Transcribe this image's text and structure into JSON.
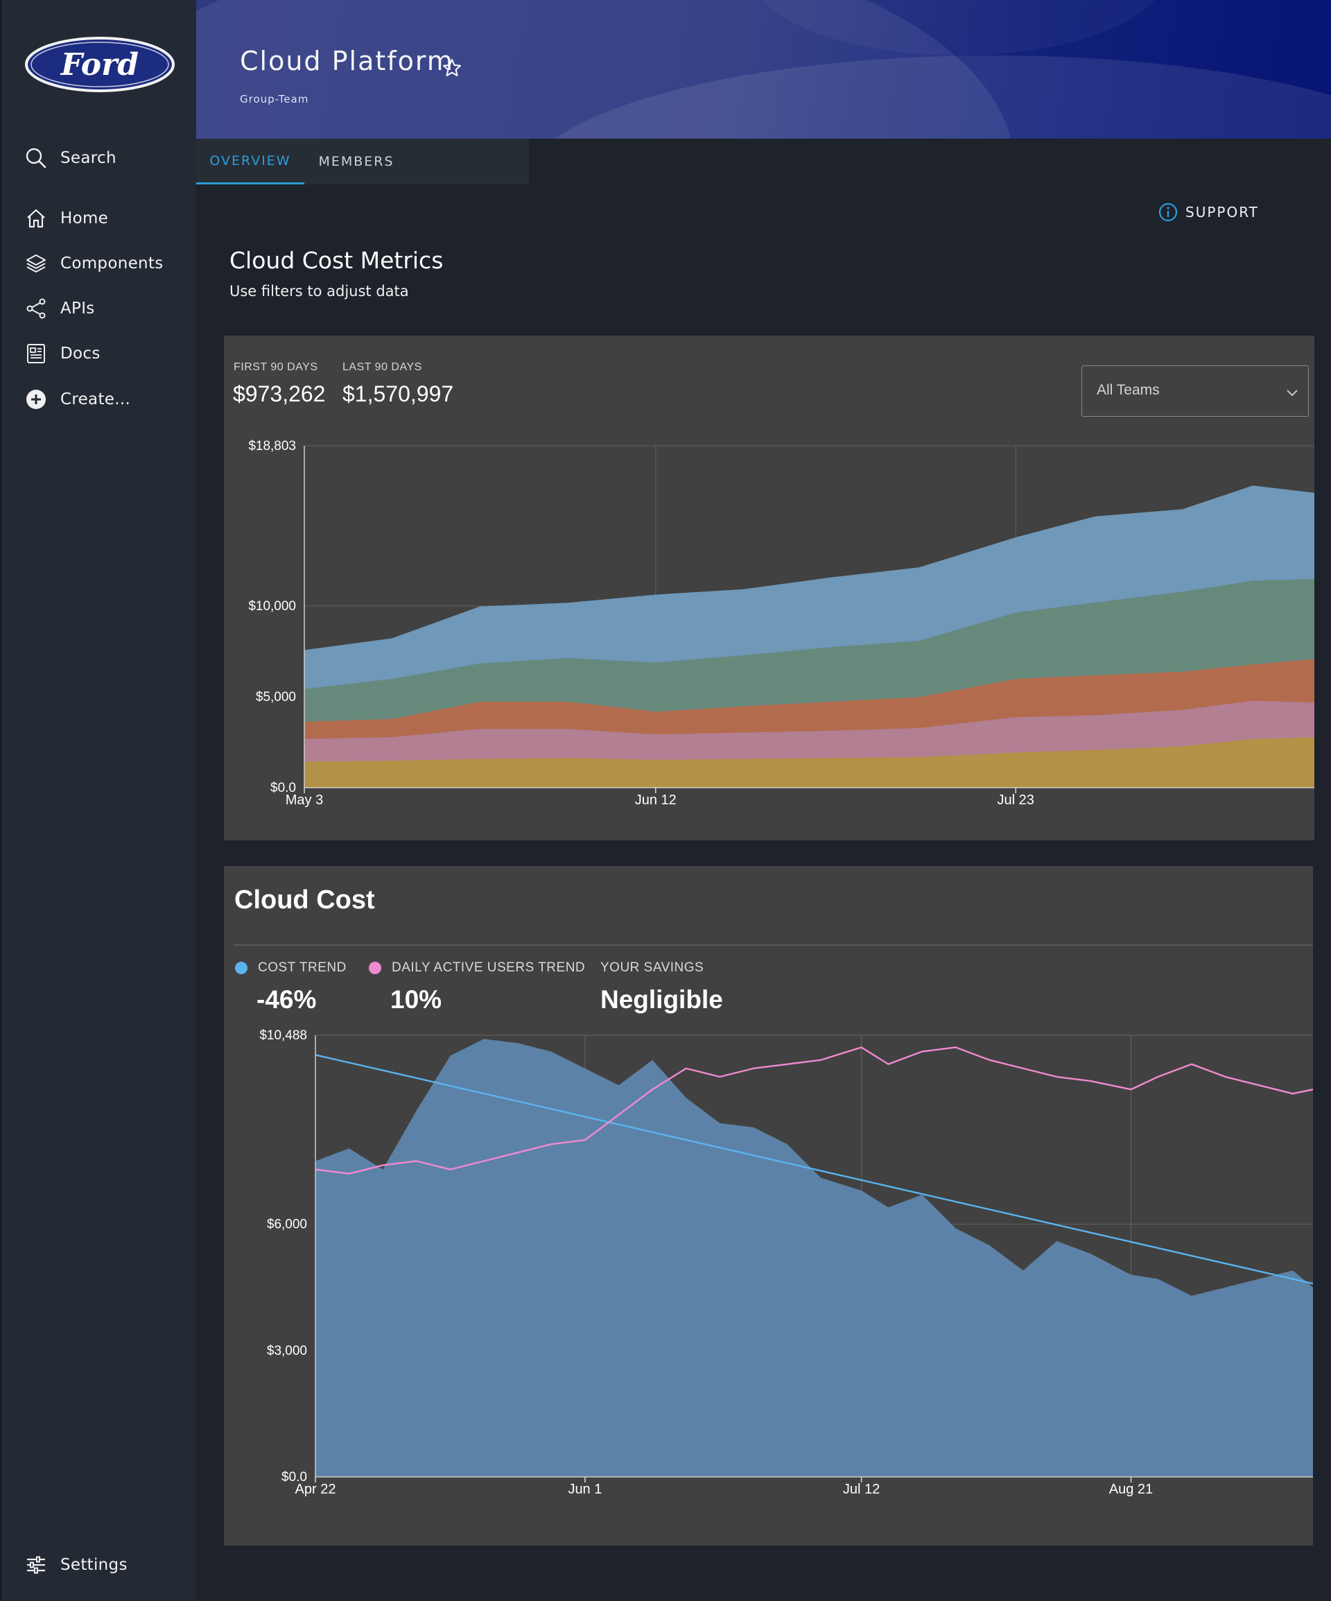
{
  "sidebar": {
    "logo_text": "Ford",
    "items": [
      {
        "label": "Search",
        "icon": "search-icon"
      },
      {
        "label": "Home",
        "icon": "home-icon"
      },
      {
        "label": "Components",
        "icon": "layers-icon"
      },
      {
        "label": "APIs",
        "icon": "share-icon"
      },
      {
        "label": "Docs",
        "icon": "docs-icon"
      },
      {
        "label": "Create...",
        "icon": "plus-circle-icon"
      }
    ],
    "settings_label": "Settings"
  },
  "header": {
    "title": "Cloud Platform",
    "subtitle": "Group-Team"
  },
  "tabs": [
    {
      "label": "OVERVIEW",
      "active": true
    },
    {
      "label": "MEMBERS",
      "active": false
    }
  ],
  "support_label": "SUPPORT",
  "metrics": {
    "title": "Cloud Cost Metrics",
    "subtitle": "Use filters to adjust data",
    "first_label": "FIRST 90 DAYS",
    "first_value": "$973,262",
    "last_label": "LAST 90 DAYS",
    "last_value": "$1,570,997",
    "select_value": "All Teams"
  },
  "cloud_cost": {
    "title": "Cloud Cost",
    "legend": [
      {
        "label": "COST TREND",
        "value": "-46%",
        "color": "#5ab4f0"
      },
      {
        "label": "DAILY ACTIVE USERS TREND",
        "value": "10%",
        "color": "#f08ad0"
      },
      {
        "label": "YOUR SAVINGS",
        "value": "Negligible"
      }
    ]
  },
  "chart_data": [
    {
      "type": "area",
      "stacked": true,
      "y_tick_labels": [
        "$0.0",
        "$5,000",
        "$10,000",
        "$18,803"
      ],
      "y_ticks": [
        0,
        5000,
        10000,
        18803
      ],
      "ylim": [
        0,
        18803
      ],
      "x_tick_labels": [
        "May 3",
        "Jun 12",
        "Jul 23"
      ],
      "x_ticks": [
        0,
        40,
        81
      ],
      "x_range": [
        0,
        115
      ],
      "grid": true,
      "colors": [
        "#b39247",
        "#b27f93",
        "#b26b4d",
        "#66897c",
        "#6f98b9"
      ],
      "x": [
        0,
        10,
        20,
        30,
        40,
        50,
        60,
        70,
        81,
        90,
        100,
        108,
        115
      ],
      "series": [
        {
          "values": [
            1450,
            1500,
            1600,
            1650,
            1550,
            1600,
            1650,
            1700,
            1950,
            2100,
            2300,
            2700,
            2800
          ]
        },
        {
          "values": [
            1250,
            1300,
            1650,
            1600,
            1400,
            1450,
            1500,
            1600,
            1950,
            1900,
            2000,
            2100,
            1900
          ]
        },
        {
          "values": [
            950,
            1000,
            1500,
            1500,
            1250,
            1450,
            1600,
            1700,
            2100,
            2200,
            2100,
            2000,
            2400
          ]
        },
        {
          "values": [
            1800,
            2200,
            2100,
            2400,
            2700,
            2800,
            3000,
            3100,
            3650,
            4000,
            4400,
            4600,
            4400
          ]
        },
        {
          "values": [
            2100,
            2200,
            3100,
            3000,
            3700,
            3600,
            3800,
            4000,
            4100,
            4700,
            4500,
            5200,
            4700
          ]
        }
      ]
    },
    {
      "type": "line",
      "y_tick_labels": [
        "$0.0",
        "$3,000",
        "$6,000",
        "$10,488"
      ],
      "y_ticks": [
        0,
        3000,
        6000,
        10488
      ],
      "ylim": [
        0,
        10488
      ],
      "x_tick_labels": [
        "Apr 22",
        "Jun 1",
        "Jul 12",
        "Aug 21"
      ],
      "x_ticks": [
        0,
        40,
        81,
        121
      ],
      "x_range": [
        0,
        148
      ],
      "grid": true,
      "series": [
        {
          "name": "Cloud Cost",
          "kind": "area",
          "color": "#5f88b0",
          "x": [
            0,
            5,
            10,
            15,
            20,
            25,
            30,
            35,
            40,
            45,
            50,
            55,
            60,
            65,
            70,
            75,
            81,
            85,
            90,
            95,
            100,
            105,
            110,
            115,
            121,
            125,
            130,
            135,
            140,
            145,
            148
          ],
          "values": [
            7500,
            7800,
            7300,
            8700,
            10000,
            10400,
            10300,
            10100,
            9700,
            9300,
            9900,
            9000,
            8400,
            8300,
            7900,
            7100,
            6800,
            6400,
            6700,
            5900,
            5500,
            4900,
            5600,
            5300,
            4800,
            4700,
            4300,
            4500,
            4700,
            4900,
            4500
          ]
        },
        {
          "name": "Cost Trend",
          "kind": "line",
          "color": "#5ab4f0",
          "x": [
            0,
            148
          ],
          "values": [
            10020,
            4590
          ]
        },
        {
          "name": "Daily Active Users Trend",
          "kind": "line",
          "color": "#f08ad0",
          "x": [
            0,
            5,
            10,
            15,
            20,
            25,
            30,
            35,
            40,
            45,
            50,
            55,
            60,
            65,
            70,
            75,
            81,
            85,
            90,
            95,
            100,
            105,
            110,
            115,
            121,
            125,
            130,
            135,
            140,
            145,
            148
          ],
          "values": [
            7300,
            7200,
            7400,
            7500,
            7300,
            7500,
            7700,
            7900,
            8000,
            8600,
            9200,
            9700,
            9500,
            9700,
            9800,
            9900,
            10200,
            9800,
            10100,
            10200,
            9900,
            9700,
            9500,
            9400,
            9200,
            9500,
            9800,
            9500,
            9300,
            9100,
            9200
          ]
        }
      ]
    }
  ]
}
